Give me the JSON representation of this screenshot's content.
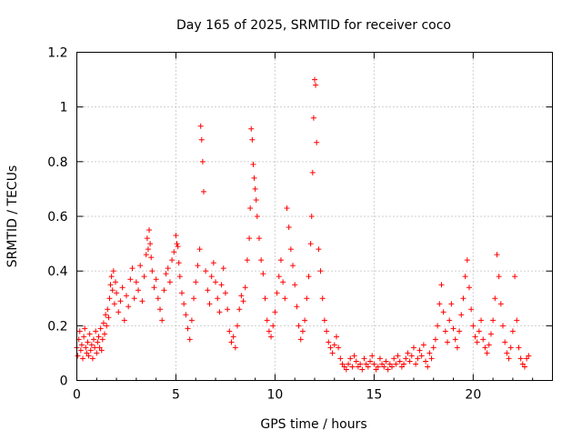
{
  "chart_data": {
    "type": "scatter",
    "title": "Day 165 of 2025, SRMTID for receiver coco",
    "xlabel": "GPS time / hours",
    "ylabel": "SRMTID / TECUs",
    "xlim": [
      0,
      24
    ],
    "ylim": [
      0,
      1.2
    ],
    "xticks": [
      0,
      5,
      10,
      15,
      20
    ],
    "xtick_labels": [
      "0",
      "5",
      "10",
      "15",
      "20"
    ],
    "yticks": [
      0,
      0.2,
      0.4,
      0.6,
      0.8,
      1.0,
      1.2
    ],
    "ytick_labels": [
      "0",
      "0.2",
      "0.4",
      "0.6",
      "0.8",
      "1",
      "1.2"
    ],
    "grid": true,
    "marker": "+",
    "series": [
      {
        "name": "SRMTID",
        "color": "#ff0000",
        "x": [
          0.0,
          0.05,
          0.1,
          0.15,
          0.2,
          0.25,
          0.3,
          0.35,
          0.4,
          0.45,
          0.5,
          0.55,
          0.6,
          0.65,
          0.7,
          0.75,
          0.8,
          0.85,
          0.9,
          0.95,
          1.0,
          1.05,
          1.1,
          1.15,
          1.2,
          1.25,
          1.3,
          1.35,
          1.4,
          1.45,
          1.5,
          1.55,
          1.6,
          1.65,
          1.7,
          1.75,
          1.8,
          1.85,
          1.9,
          1.95,
          2.0,
          2.1,
          2.2,
          2.3,
          2.4,
          2.5,
          2.6,
          2.7,
          2.8,
          2.9,
          3.0,
          3.1,
          3.2,
          3.3,
          3.4,
          3.5,
          3.55,
          3.6,
          3.65,
          3.7,
          3.75,
          3.8,
          3.9,
          4.0,
          4.1,
          4.2,
          4.3,
          4.4,
          4.5,
          4.6,
          4.7,
          4.8,
          4.9,
          5.0,
          5.05,
          5.1,
          5.15,
          5.2,
          5.3,
          5.4,
          5.5,
          5.6,
          5.7,
          5.8,
          5.9,
          6.0,
          6.1,
          6.2,
          6.25,
          6.3,
          6.35,
          6.4,
          6.5,
          6.6,
          6.7,
          6.8,
          6.9,
          7.0,
          7.1,
          7.2,
          7.3,
          7.4,
          7.5,
          7.6,
          7.7,
          7.8,
          7.9,
          8.0,
          8.1,
          8.2,
          8.3,
          8.4,
          8.5,
          8.6,
          8.7,
          8.75,
          8.8,
          8.85,
          8.9,
          8.95,
          9.0,
          9.05,
          9.1,
          9.2,
          9.3,
          9.4,
          9.5,
          9.6,
          9.7,
          9.8,
          9.9,
          10.0,
          10.1,
          10.2,
          10.3,
          10.4,
          10.5,
          10.6,
          10.7,
          10.8,
          10.9,
          11.0,
          11.1,
          11.2,
          11.3,
          11.4,
          11.5,
          11.6,
          11.7,
          11.8,
          11.85,
          11.9,
          11.95,
          12.0,
          12.05,
          12.1,
          12.2,
          12.3,
          12.4,
          12.5,
          12.6,
          12.7,
          12.8,
          12.9,
          13.0,
          13.1,
          13.2,
          13.3,
          13.4,
          13.5,
          13.6,
          13.7,
          13.8,
          13.9,
          14.0,
          14.1,
          14.2,
          14.3,
          14.4,
          14.5,
          14.6,
          14.7,
          14.8,
          14.9,
          15.0,
          15.1,
          15.2,
          15.3,
          15.4,
          15.5,
          15.6,
          15.7,
          15.8,
          15.9,
          16.0,
          16.1,
          16.2,
          16.3,
          16.4,
          16.5,
          16.6,
          16.7,
          16.8,
          16.9,
          17.0,
          17.1,
          17.2,
          17.3,
          17.4,
          17.5,
          17.6,
          17.7,
          17.8,
          17.9,
          18.0,
          18.1,
          18.2,
          18.3,
          18.4,
          18.5,
          18.6,
          18.7,
          18.8,
          18.9,
          19.0,
          19.1,
          19.2,
          19.3,
          19.4,
          19.5,
          19.6,
          19.7,
          19.8,
          19.9,
          20.0,
          20.1,
          20.2,
          20.3,
          20.4,
          20.5,
          20.6,
          20.7,
          20.8,
          20.9,
          21.0,
          21.1,
          21.2,
          21.3,
          21.4,
          21.5,
          21.6,
          21.7,
          21.8,
          21.9,
          22.0,
          22.1,
          22.2,
          22.3,
          22.4,
          22.5,
          22.6,
          22.7,
          22.8
        ],
        "y": [
          0.12,
          0.09,
          0.15,
          0.18,
          0.11,
          0.13,
          0.08,
          0.16,
          0.19,
          0.12,
          0.1,
          0.14,
          0.09,
          0.17,
          0.11,
          0.13,
          0.08,
          0.15,
          0.12,
          0.18,
          0.1,
          0.14,
          0.16,
          0.12,
          0.19,
          0.11,
          0.15,
          0.21,
          0.17,
          0.24,
          0.2,
          0.26,
          0.23,
          0.3,
          0.35,
          0.38,
          0.33,
          0.4,
          0.28,
          0.36,
          0.32,
          0.25,
          0.29,
          0.34,
          0.22,
          0.31,
          0.27,
          0.37,
          0.41,
          0.3,
          0.36,
          0.33,
          0.42,
          0.29,
          0.38,
          0.46,
          0.52,
          0.48,
          0.55,
          0.5,
          0.45,
          0.4,
          0.34,
          0.37,
          0.3,
          0.26,
          0.22,
          0.33,
          0.39,
          0.41,
          0.36,
          0.44,
          0.47,
          0.53,
          0.5,
          0.49,
          0.43,
          0.38,
          0.32,
          0.28,
          0.24,
          0.19,
          0.15,
          0.22,
          0.3,
          0.36,
          0.42,
          0.48,
          0.93,
          0.88,
          0.8,
          0.69,
          0.4,
          0.33,
          0.28,
          0.38,
          0.43,
          0.36,
          0.3,
          0.25,
          0.35,
          0.41,
          0.32,
          0.26,
          0.18,
          0.14,
          0.16,
          0.12,
          0.2,
          0.26,
          0.31,
          0.29,
          0.34,
          0.44,
          0.52,
          0.63,
          0.92,
          0.88,
          0.79,
          0.74,
          0.7,
          0.66,
          0.6,
          0.52,
          0.44,
          0.39,
          0.3,
          0.22,
          0.18,
          0.16,
          0.2,
          0.25,
          0.32,
          0.38,
          0.44,
          0.36,
          0.3,
          0.63,
          0.56,
          0.48,
          0.42,
          0.35,
          0.27,
          0.2,
          0.15,
          0.18,
          0.22,
          0.3,
          0.38,
          0.5,
          0.6,
          0.76,
          0.96,
          1.1,
          1.08,
          0.87,
          0.48,
          0.4,
          0.3,
          0.22,
          0.18,
          0.14,
          0.12,
          0.1,
          0.13,
          0.16,
          0.12,
          0.08,
          0.06,
          0.05,
          0.04,
          0.06,
          0.08,
          0.05,
          0.09,
          0.07,
          0.05,
          0.06,
          0.04,
          0.08,
          0.06,
          0.05,
          0.07,
          0.09,
          0.06,
          0.04,
          0.05,
          0.08,
          0.06,
          0.05,
          0.07,
          0.04,
          0.06,
          0.05,
          0.08,
          0.06,
          0.09,
          0.07,
          0.05,
          0.06,
          0.08,
          0.1,
          0.07,
          0.09,
          0.12,
          0.06,
          0.08,
          0.11,
          0.09,
          0.13,
          0.07,
          0.05,
          0.1,
          0.08,
          0.12,
          0.15,
          0.2,
          0.28,
          0.35,
          0.25,
          0.18,
          0.14,
          0.22,
          0.28,
          0.19,
          0.15,
          0.12,
          0.18,
          0.24,
          0.3,
          0.38,
          0.44,
          0.34,
          0.26,
          0.2,
          0.16,
          0.14,
          0.18,
          0.22,
          0.15,
          0.12,
          0.1,
          0.13,
          0.17,
          0.22,
          0.3,
          0.46,
          0.38,
          0.28,
          0.2,
          0.14,
          0.1,
          0.08,
          0.12,
          0.18,
          0.38,
          0.22,
          0.12,
          0.08,
          0.06,
          0.05,
          0.08,
          0.09
        ]
      }
    ]
  }
}
